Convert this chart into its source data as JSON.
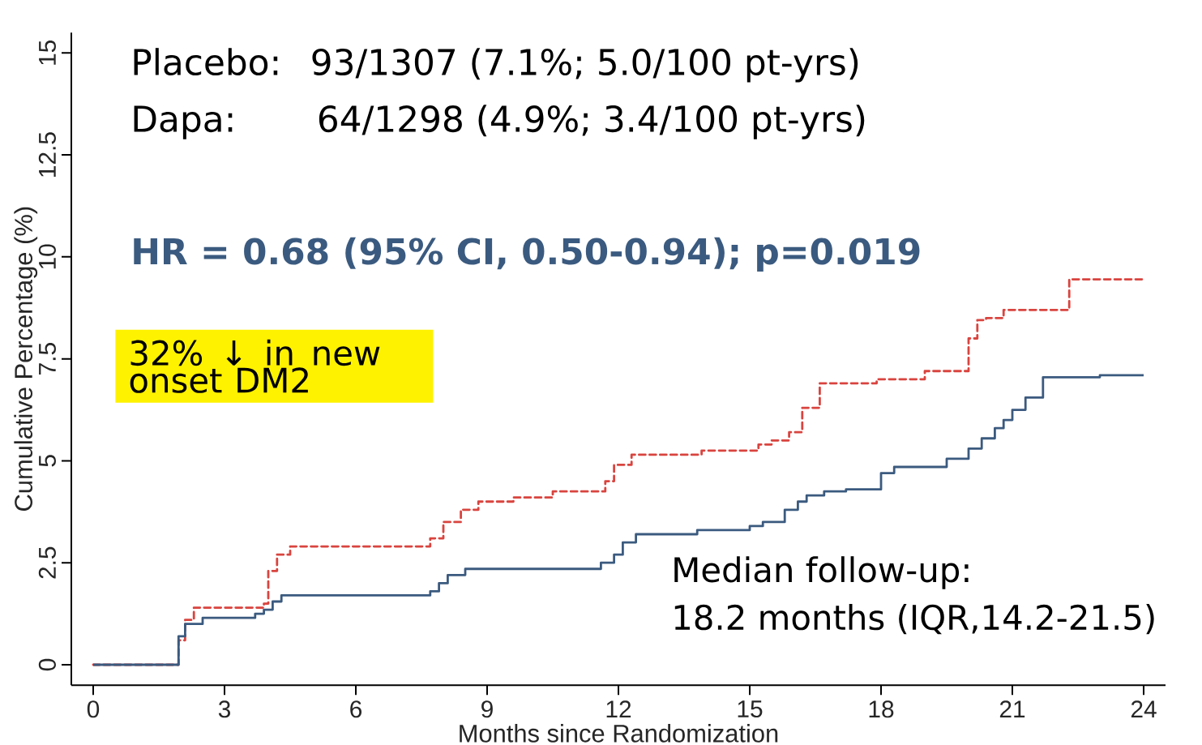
{
  "chart_data": {
    "type": "step",
    "xlabel": "Months since Randomization",
    "ylabel": "Cumulative Percentage (%)",
    "xlim": [
      -0.5,
      24.5
    ],
    "ylim": [
      -0.5,
      15.5
    ],
    "xticks": [
      0,
      3,
      6,
      9,
      12,
      15,
      18,
      21,
      24
    ],
    "yticks": [
      0,
      2.5,
      5,
      7.5,
      10,
      12.5,
      15
    ],
    "series": [
      {
        "color": "#d9443f",
        "line_style": "dashed",
        "x": [
          0,
          1.8,
          1.95,
          2.1,
          2.3,
          3.9,
          4.0,
          4.2,
          4.5,
          7.7,
          8.0,
          8.4,
          8.8,
          9.6,
          10.5,
          11.7,
          11.9,
          12.3,
          13.9,
          15.2,
          15.5,
          15.9,
          16.2,
          16.6,
          17.9,
          19.0,
          20.0,
          20.2,
          20.4,
          20.8,
          22.3,
          24
        ],
        "values": [
          0,
          0,
          0.6,
          1.1,
          1.4,
          1.5,
          2.3,
          2.7,
          2.9,
          3.1,
          3.5,
          3.8,
          4.0,
          4.1,
          4.25,
          4.5,
          4.9,
          5.15,
          5.25,
          5.4,
          5.5,
          5.7,
          6.3,
          6.9,
          7.0,
          7.2,
          8.0,
          8.45,
          8.5,
          8.7,
          9.45,
          9.45
        ]
      },
      {
        "color": "#3b5a7f",
        "line_style": "solid",
        "x": [
          0,
          1.8,
          1.95,
          2.1,
          2.5,
          3.7,
          3.9,
          4.1,
          4.3,
          7.7,
          7.9,
          8.1,
          8.5,
          11.6,
          11.9,
          12.1,
          12.4,
          13.8,
          15.0,
          15.3,
          15.8,
          16.1,
          16.3,
          16.7,
          17.2,
          18.0,
          18.3,
          19.5,
          20.0,
          20.3,
          20.6,
          20.8,
          21.0,
          21.3,
          21.7,
          23.0,
          24
        ],
        "values": [
          0,
          0,
          0.7,
          1.0,
          1.15,
          1.25,
          1.35,
          1.55,
          1.7,
          1.8,
          2.0,
          2.2,
          2.35,
          2.5,
          2.7,
          3.0,
          3.2,
          3.3,
          3.4,
          3.5,
          3.8,
          4.0,
          4.15,
          4.25,
          4.3,
          4.7,
          4.85,
          5.05,
          5.3,
          5.55,
          5.8,
          6.0,
          6.25,
          6.55,
          7.05,
          7.1,
          7.1
        ]
      }
    ],
    "annotations": [
      "Placebo:",
      "93/1307 (7.1%; 5.0/100 pt-yrs)",
      "Dapa:",
      "64/1298 (4.9%; 3.4/100 pt-yrs)",
      "HR = 0.68 (95% CI, 0.50-0.94); p=0.019",
      "32% ↓ in new onset DM2",
      "Median follow-up:",
      "18.2 months  (IQR,14.2-21.5)"
    ]
  }
}
